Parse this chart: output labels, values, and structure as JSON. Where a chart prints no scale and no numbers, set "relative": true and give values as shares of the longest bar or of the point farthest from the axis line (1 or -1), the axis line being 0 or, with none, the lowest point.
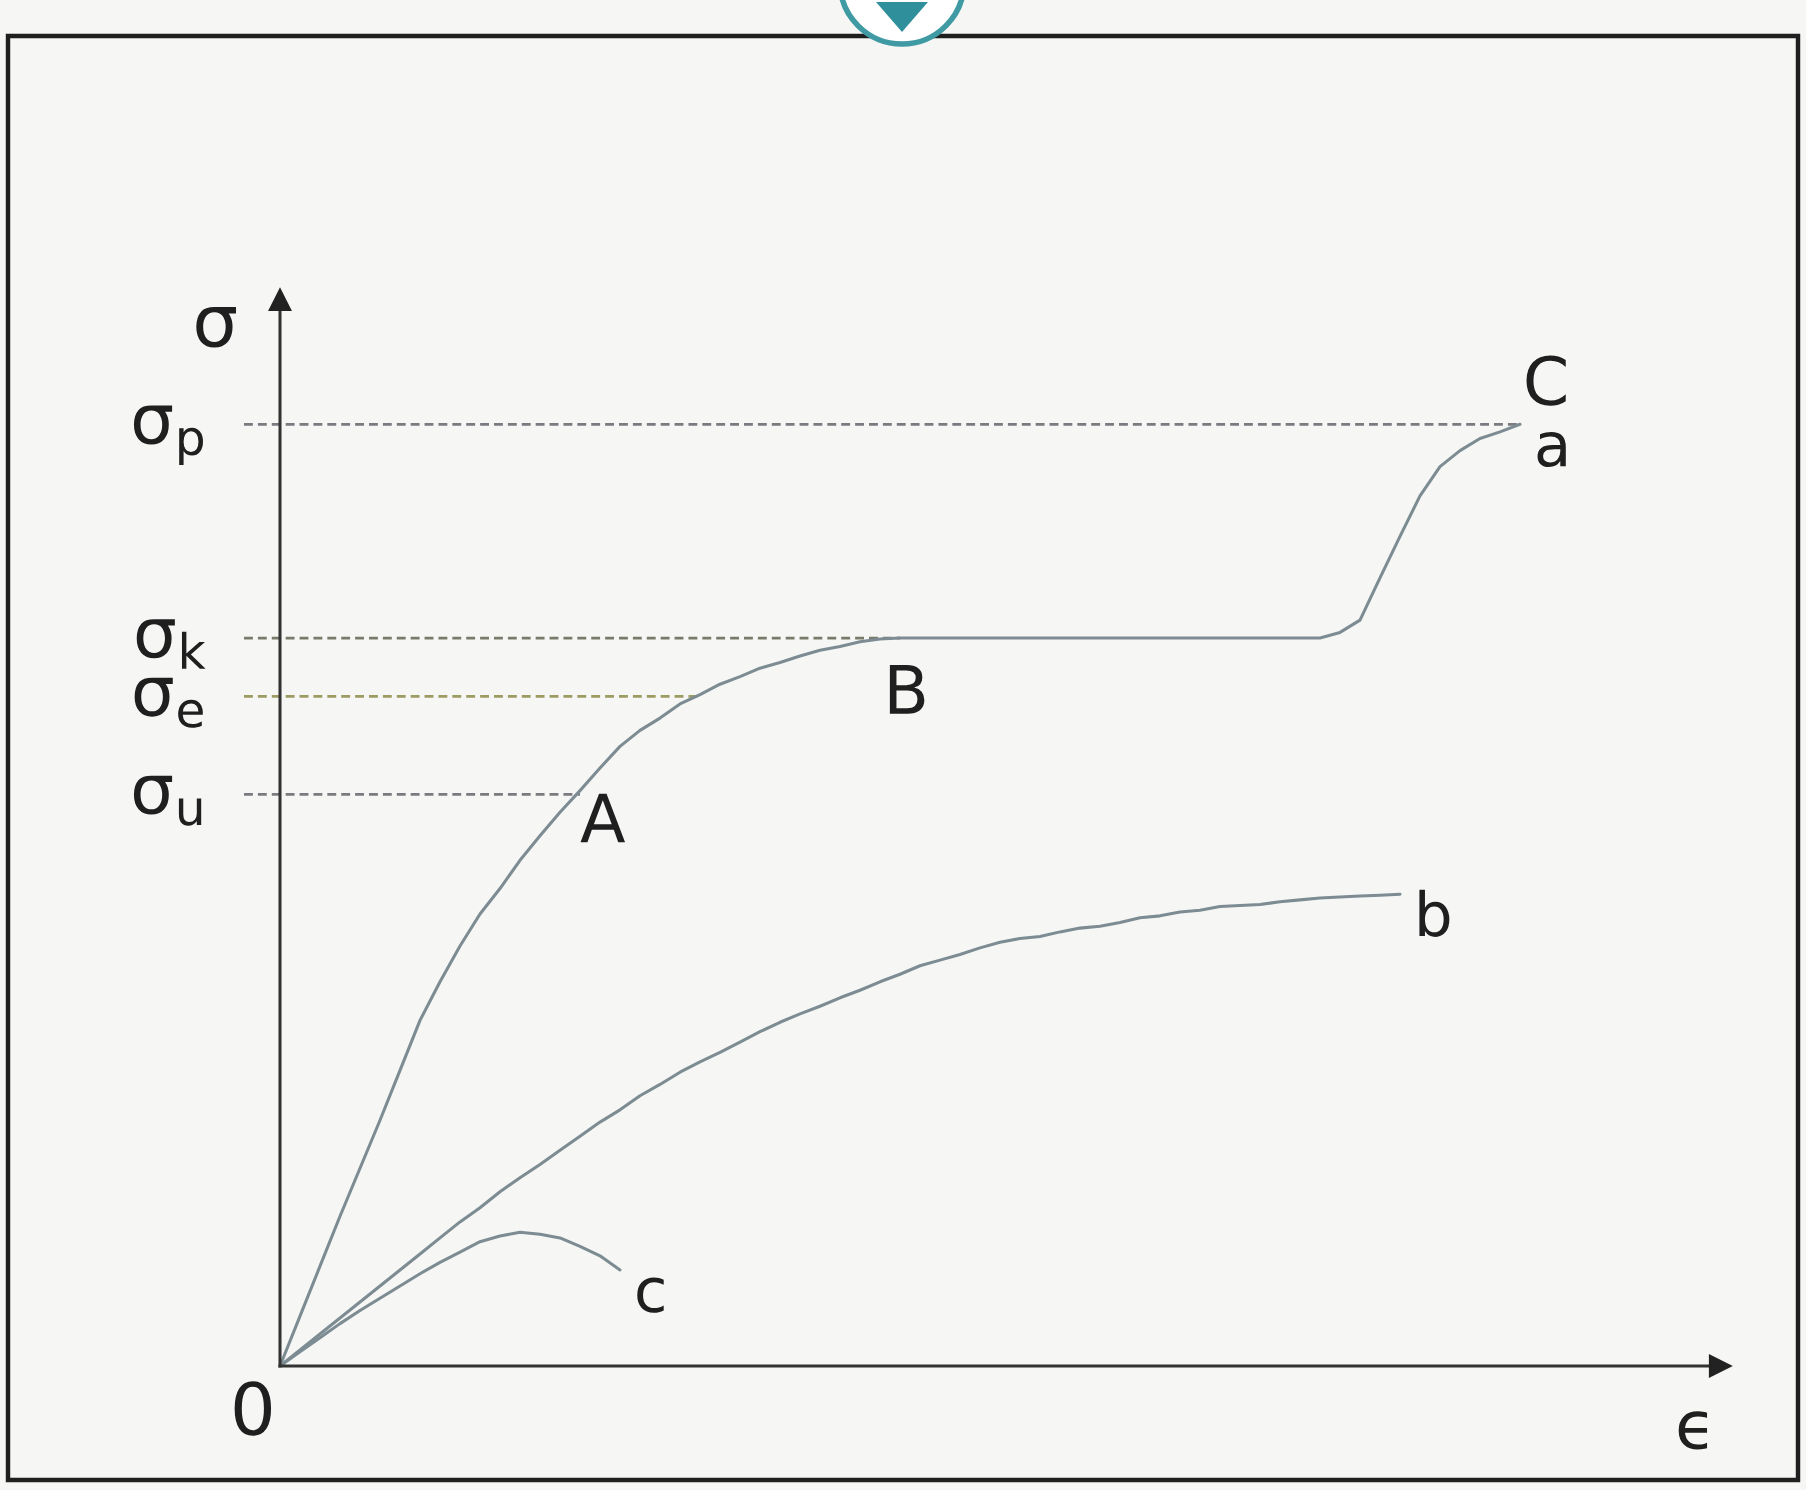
{
  "chart_data": {
    "type": "line",
    "relative": true,
    "xlabel": "ϵ",
    "ylabel": "σ",
    "categories": [
      null,
      null,
      null,
      null,
      null,
      null,
      null,
      null,
      null,
      null,
      null,
      null,
      null,
      null,
      null,
      null,
      null,
      null,
      null,
      null,
      null,
      null,
      null,
      null,
      null,
      null,
      null,
      null,
      null,
      null,
      null,
      null,
      null,
      null,
      null,
      null,
      null,
      null,
      null,
      null,
      null,
      null,
      null,
      null,
      null,
      null,
      null,
      null,
      null,
      null,
      null,
      null,
      null,
      null,
      null,
      null,
      null,
      null,
      null,
      null,
      null,
      null,
      null,
      null,
      null,
      null,
      null,
      null,
      null,
      null,
      null,
      null,
      null
    ],
    "series": [
      {
        "name": "a",
        "color": "#7d8c93",
        "values": [
          0,
          0.053,
          0.106,
          0.159,
          0.21,
          0.261,
          0.314,
          0.367,
          0.408,
          0.446,
          0.48,
          0.507,
          0.537,
          0.563,
          0.588,
          0.611,
          0.635,
          0.658,
          0.675,
          0.688,
          0.703,
          0.713,
          0.724,
          0.732,
          0.741,
          0.747,
          0.754,
          0.76,
          0.764,
          0.769,
          0.772,
          0.773,
          0.773,
          0.773,
          0.773,
          0.773,
          0.773,
          0.773,
          0.773,
          0.773,
          0.773,
          0.773,
          0.773,
          0.773,
          0.773,
          0.773,
          0.773,
          0.773,
          0.773,
          0.773,
          0.773,
          0.773,
          0.773,
          0.779,
          0.792,
          0.837,
          0.881,
          0.924,
          0.955,
          0.972,
          0.985,
          0.992,
          1.0,
          null,
          null,
          null,
          null,
          null,
          null,
          null,
          null,
          null,
          null
        ]
      },
      {
        "name": "b",
        "color": "#7d8c93",
        "values": [
          0,
          0.017,
          0.034,
          0.051,
          0.068,
          0.085,
          0.102,
          0.119,
          0.136,
          0.153,
          0.168,
          0.185,
          0.2,
          0.214,
          0.229,
          0.244,
          0.259,
          0.272,
          0.287,
          0.299,
          0.312,
          0.323,
          0.333,
          0.344,
          0.355,
          0.365,
          0.374,
          0.382,
          0.391,
          0.399,
          0.408,
          0.416,
          0.425,
          0.431,
          0.437,
          0.444,
          0.45,
          0.454,
          0.456,
          0.461,
          0.465,
          0.467,
          0.471,
          0.476,
          0.478,
          0.482,
          0.484,
          0.488,
          0.489,
          0.49,
          0.493,
          0.495,
          0.497,
          0.498,
          0.499,
          0.5,
          0.501,
          null,
          null,
          null,
          null,
          null,
          null,
          null,
          null,
          null,
          null,
          null,
          null,
          null,
          null,
          null,
          null
        ]
      },
      {
        "name": "c",
        "color": "#7d8c93",
        "values": [
          0,
          0.015,
          0.03,
          0.045,
          0.059,
          0.072,
          0.085,
          0.098,
          0.11,
          0.121,
          0.132,
          0.138,
          0.142,
          0.14,
          0.136,
          0.127,
          0.117,
          0.102,
          null,
          null,
          null,
          null,
          null,
          null,
          null,
          null,
          null,
          null,
          null,
          null,
          null,
          null,
          null,
          null,
          null,
          null,
          null,
          null,
          null,
          null,
          null,
          null,
          null,
          null,
          null,
          null,
          null,
          null,
          null,
          null,
          null,
          null,
          null,
          null,
          null,
          null,
          null,
          null,
          null,
          null,
          null,
          null,
          null,
          null,
          null,
          null,
          null,
          null,
          null,
          null,
          null,
          null,
          null
        ]
      }
    ],
    "ref_lines": [
      {
        "axis": "y",
        "value": 1.0,
        "label": "σ$_{p}$",
        "color": "#7a7a80",
        "line_style": "dashed"
      },
      {
        "axis": "y",
        "value": 0.773,
        "label": "σ$_{k}$",
        "color": "#7a7a6a",
        "line_style": "dashed"
      },
      {
        "axis": "y",
        "value": 0.711,
        "label": "σ$_{e}$",
        "color": "#9c9c62",
        "line_style": "dashed"
      },
      {
        "axis": "y",
        "value": 0.607,
        "label": "σ$_{u}$",
        "color": "#7a7a80",
        "line_style": "dashed"
      }
    ],
    "annotations": [
      "A",
      "B",
      "C",
      "0"
    ]
  }
}
